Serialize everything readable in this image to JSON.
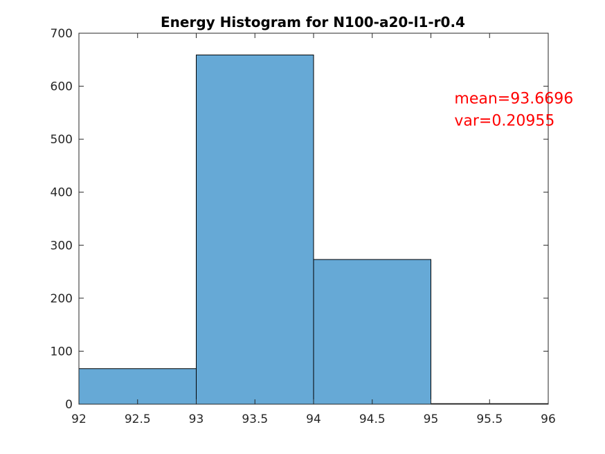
{
  "chart_data": {
    "type": "bar",
    "title": "Energy Histogram for N100-a20-l1-r0.4",
    "xlabel": "",
    "ylabel": "",
    "xlim": [
      92,
      96
    ],
    "ylim": [
      0,
      700
    ],
    "xticks": [
      92,
      92.5,
      93,
      93.5,
      94,
      94.5,
      95,
      95.5,
      96
    ],
    "xtick_labels": [
      "92",
      "92.5",
      "93",
      "93.5",
      "94",
      "94.5",
      "95",
      "95.5",
      "96"
    ],
    "yticks": [
      0,
      100,
      200,
      300,
      400,
      500,
      600,
      700
    ],
    "ytick_labels": [
      "0",
      "100",
      "200",
      "300",
      "400",
      "500",
      "600",
      "700"
    ],
    "bins": [
      {
        "from": 92,
        "to": 93,
        "count": 67
      },
      {
        "from": 93,
        "to": 94,
        "count": 659
      },
      {
        "from": 94,
        "to": 95,
        "count": 273
      },
      {
        "from": 95,
        "to": 96,
        "count": 1
      }
    ],
    "bar_color": "#66A9D6",
    "edge_color": "#000000",
    "grid": false,
    "annotations": [
      {
        "text": "mean=93.6696",
        "x": 95.2,
        "y": 578,
        "color": "#FF0000"
      },
      {
        "text": "var=0.20955",
        "x": 95.2,
        "y": 536,
        "color": "#FF0000"
      }
    ]
  }
}
